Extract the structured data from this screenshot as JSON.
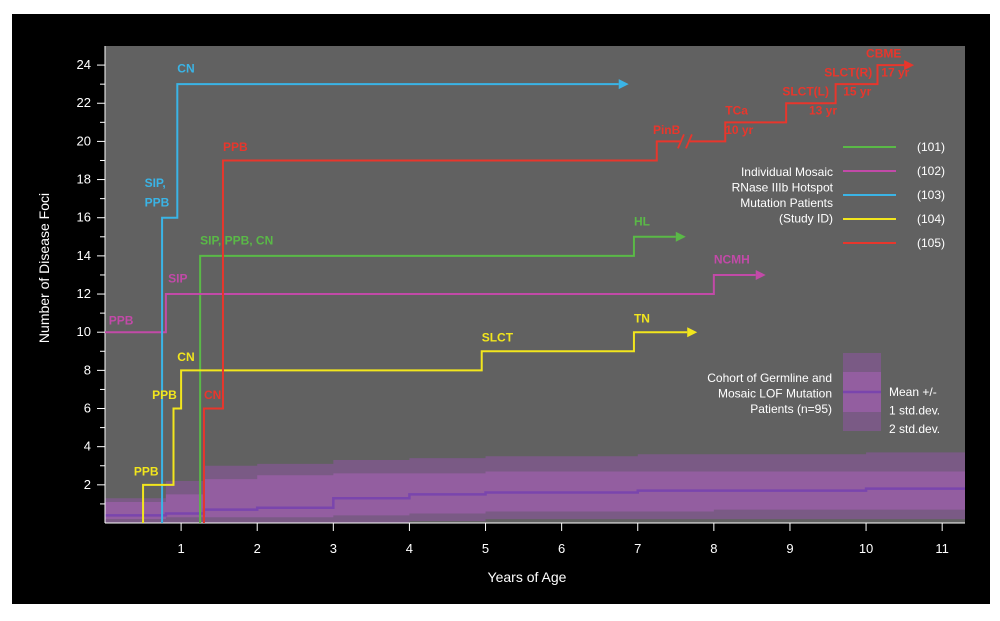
{
  "chart_data": {
    "type": "line",
    "xlabel": "Years of Age",
    "ylabel": "Number of Disease Foci",
    "xlim": [
      0,
      11.3
    ],
    "ylim": [
      0,
      25
    ],
    "x_ticks": [
      "1",
      "2",
      "3",
      "4",
      "5",
      "6",
      "7",
      "8",
      "9",
      "10",
      "11"
    ],
    "y_ticks": [
      "2",
      "4",
      "6",
      "8",
      "10",
      "12",
      "14",
      "16",
      "18",
      "20",
      "22",
      "24"
    ],
    "background": "#616161",
    "outer_background": "#000000",
    "series": [
      {
        "name": "(101)",
        "color": "#5ab947",
        "points": [
          [
            1.25,
            0
          ],
          [
            1.25,
            14
          ],
          [
            6.95,
            14
          ],
          [
            6.95,
            15
          ],
          [
            7.5,
            15
          ]
        ],
        "arrow": true,
        "labels": [
          {
            "text": "SIP, PPB, CN",
            "x": 1.25,
            "y": 14.6
          },
          {
            "text": "HL",
            "x": 6.95,
            "y": 15.6
          }
        ]
      },
      {
        "name": "(102)",
        "color": "#c24aa8",
        "points": [
          [
            0,
            10
          ],
          [
            0.8,
            10
          ],
          [
            0.8,
            12
          ],
          [
            8.0,
            12
          ],
          [
            8.0,
            13
          ],
          [
            8.55,
            13
          ]
        ],
        "arrow": true,
        "labels": [
          {
            "text": "PPB",
            "x": 0.05,
            "y": 10.4
          },
          {
            "text": "SIP",
            "x": 0.83,
            "y": 12.6
          },
          {
            "text": "NCMH",
            "x": 8.0,
            "y": 13.6
          }
        ]
      },
      {
        "name": "(103)",
        "color": "#3ab4e6",
        "points": [
          [
            0.75,
            0
          ],
          [
            0.75,
            16
          ],
          [
            0.95,
            16
          ],
          [
            0.95,
            23
          ],
          [
            6.75,
            23
          ]
        ],
        "arrow": true,
        "labels": [
          {
            "text": "SIP,",
            "x": 0.52,
            "y": 17.6
          },
          {
            "text": "PPB",
            "x": 0.52,
            "y": 16.6
          },
          {
            "text": "CN",
            "x": 0.95,
            "y": 23.6
          }
        ]
      },
      {
        "name": "(104)",
        "color": "#f2e61d",
        "points": [
          [
            0.5,
            0
          ],
          [
            0.5,
            2
          ],
          [
            0.9,
            2
          ],
          [
            0.9,
            6
          ],
          [
            1.0,
            6
          ],
          [
            1.0,
            8
          ],
          [
            4.95,
            8
          ],
          [
            4.95,
            9
          ],
          [
            6.95,
            9
          ],
          [
            6.95,
            10
          ],
          [
            7.65,
            10
          ]
        ],
        "arrow": true,
        "labels": [
          {
            "text": "PPB",
            "x": 0.38,
            "y": 2.5
          },
          {
            "text": "PPB",
            "x": 0.62,
            "y": 6.5
          },
          {
            "text": "CN",
            "x": 0.95,
            "y": 8.5
          },
          {
            "text": "SLCT",
            "x": 4.95,
            "y": 9.5
          },
          {
            "text": "TN",
            "x": 6.95,
            "y": 10.5
          }
        ]
      },
      {
        "name": "(105)",
        "color": "#e8362c",
        "points": [
          [
            1.3,
            0
          ],
          [
            1.3,
            6
          ],
          [
            1.55,
            6
          ],
          [
            1.55,
            19
          ],
          [
            7.25,
            19
          ],
          [
            7.25,
            20
          ],
          [
            8.15,
            20
          ],
          [
            8.15,
            21
          ],
          [
            8.95,
            21
          ],
          [
            8.95,
            22
          ],
          [
            9.6,
            22
          ],
          [
            9.6,
            23
          ],
          [
            10.15,
            23
          ],
          [
            10.15,
            24
          ],
          [
            10.5,
            24
          ]
        ],
        "arrow": true,
        "break_at_x": 7.62,
        "labels": [
          {
            "text": "CN",
            "x": 1.3,
            "y": 6.5
          },
          {
            "text": "PPB",
            "x": 1.55,
            "y": 19.5
          },
          {
            "text": "PinB",
            "x": 7.2,
            "y": 20.4
          },
          {
            "text": "TCa",
            "x": 8.15,
            "y": 21.4
          },
          {
            "text": "10 yr",
            "x": 8.15,
            "y": 20.4
          },
          {
            "text": "SLCT(L)",
            "x": 8.9,
            "y": 22.4
          },
          {
            "text": "13 yr",
            "x": 9.25,
            "y": 21.4
          },
          {
            "text": "SLCT(R)",
            "x": 9.45,
            "y": 23.4
          },
          {
            "text": "15 yr",
            "x": 9.7,
            "y": 22.4
          },
          {
            "text": "CBME",
            "x": 10.0,
            "y": 24.4
          },
          {
            "text": "17 yr",
            "x": 10.2,
            "y": 23.4
          }
        ]
      },
      {
        "name": "Mean +/-",
        "color": "#7a45ad",
        "x": [
          0,
          0.8,
          1.3,
          2.0,
          3.0,
          4.0,
          5.0,
          6.0,
          7.0,
          8.0,
          9.0,
          10.0,
          11.3
        ],
        "mean": [
          0.4,
          0.5,
          0.7,
          0.8,
          1.3,
          1.5,
          1.6,
          1.6,
          1.7,
          1.7,
          1.7,
          1.8,
          1.8
        ],
        "sd1_upper": [
          1.1,
          1.5,
          2.3,
          2.5,
          2.6,
          2.6,
          2.7,
          2.7,
          2.7,
          2.7,
          2.7,
          2.7,
          2.7
        ],
        "sd1_lower": [
          0.2,
          0.3,
          0.3,
          0.3,
          0.4,
          0.5,
          0.6,
          0.6,
          0.6,
          0.7,
          0.7,
          0.7,
          0.7
        ],
        "sd2_upper": [
          1.3,
          2.2,
          3.0,
          3.1,
          3.3,
          3.4,
          3.5,
          3.5,
          3.6,
          3.6,
          3.6,
          3.7,
          3.7
        ],
        "sd2_lower": [
          0,
          0,
          0,
          0,
          0,
          0.1,
          0.2,
          0.2,
          0.2,
          0.2,
          0.2,
          0.2,
          0.2
        ]
      }
    ],
    "legend": {
      "placement": "right",
      "entries": [
        {
          "label": "(101)",
          "color": "#5ab947"
        },
        {
          "label": "(102)",
          "color": "#c24aa8"
        },
        {
          "label": "(103)",
          "color": "#3ab4e6"
        },
        {
          "label": "(104)",
          "color": "#f2e61d"
        },
        {
          "label": "(105)",
          "color": "#e8362c"
        }
      ],
      "group_caption": [
        "Individual Mosaic",
        "RNase IIIb Hotspot",
        "Mutation Patients",
        "(Study ID)"
      ],
      "cohort_caption": [
        "Cohort of Germline and",
        "Mosaic LOF Mutation",
        "Patients (n=95)"
      ],
      "band_labels": [
        "Mean +/-",
        "1 std.dev.",
        "2 std.dev."
      ],
      "band_colors": {
        "sd2": "#7a5a85",
        "sd1": "#935ea0",
        "mean": "#7a45ad"
      }
    }
  }
}
